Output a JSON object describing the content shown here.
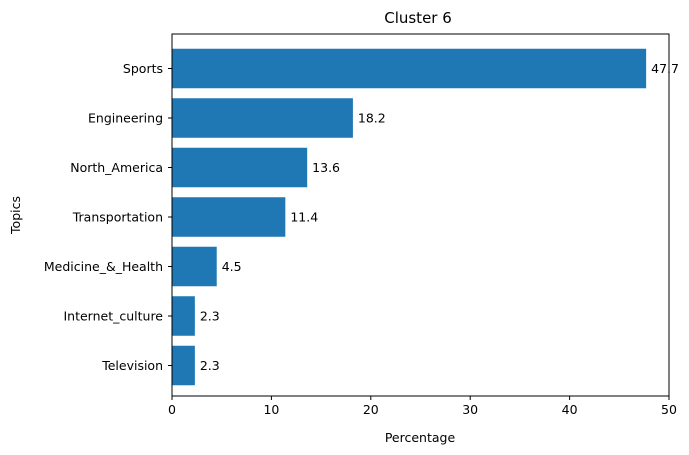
{
  "chart_data": {
    "type": "bar",
    "orientation": "horizontal",
    "title": "Cluster 6",
    "xlabel": "Percentage",
    "ylabel": "Topics",
    "categories": [
      "Sports",
      "Engineering",
      "North_America",
      "Transportation",
      "Medicine_&_Health",
      "Internet_culture",
      "Television"
    ],
    "values": [
      47.7,
      18.2,
      13.6,
      11.4,
      4.5,
      2.3,
      2.3
    ],
    "data_labels": [
      "47.7",
      "18.2",
      "13.6",
      "11.4",
      "4.5",
      "2.3",
      "2.3"
    ],
    "xlim": [
      0,
      50
    ],
    "xticks": [
      0,
      10,
      20,
      30,
      40,
      50
    ],
    "xtick_labels": [
      "0",
      "10",
      "20",
      "30",
      "40",
      "50"
    ],
    "grid": false,
    "colors": {
      "bar": "#1f77b4",
      "axis": "#000000"
    }
  }
}
